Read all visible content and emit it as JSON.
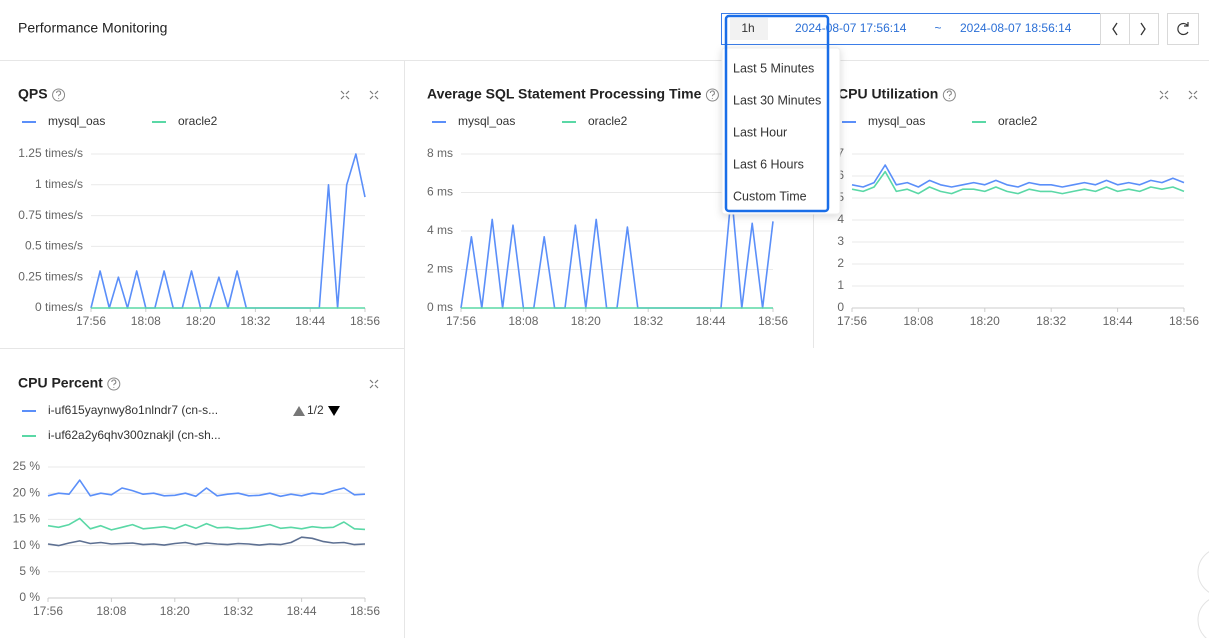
{
  "header": {
    "title": "Performance Monitoring",
    "range": "1h",
    "start": "2024-08-07 17:56:14",
    "separator": "~",
    "end": "2024-08-07 18:56:14"
  },
  "dropdown": {
    "options": [
      "Last 5 Minutes",
      "Last 30 Minutes",
      "Last Hour",
      "Last 6 Hours",
      "Custom Time"
    ]
  },
  "chart_data": [
    {
      "type": "line",
      "title": "QPS",
      "categories": [
        "17:56",
        null,
        null,
        null,
        null,
        null,
        "18:08",
        null,
        null,
        null,
        null,
        null,
        "18:20",
        null,
        null,
        null,
        null,
        null,
        "18:32",
        null,
        null,
        null,
        null,
        null,
        "18:44",
        null,
        null,
        null,
        null,
        null,
        "18:56"
      ],
      "series": [
        {
          "name": "mysql_oas",
          "color": "#5b8ff9",
          "values": [
            0,
            0.3,
            0,
            0.25,
            0,
            0.3,
            0,
            0,
            0.3,
            0,
            0,
            0.3,
            0,
            0,
            0.25,
            0,
            0.3,
            0,
            0,
            0,
            0,
            0,
            0,
            0,
            0,
            0,
            1.0,
            0,
            1.0,
            1.25,
            0.9
          ]
        },
        {
          "name": "oracle2",
          "color": "#5ad8a6",
          "values": [
            0,
            0,
            0,
            0,
            0,
            0,
            0,
            0,
            0,
            0,
            0,
            0,
            0,
            0,
            0,
            0,
            0,
            0,
            0,
            0,
            0,
            0,
            0,
            0,
            0,
            0,
            0,
            0,
            0,
            0,
            0
          ]
        }
      ],
      "ylim": [
        0,
        1.25
      ],
      "yticks": [
        {
          "value": 0,
          "label": "0 times/s"
        },
        {
          "value": 0.25,
          "label": "0.25 times/s"
        },
        {
          "value": 0.5,
          "label": "0.5 times/s"
        },
        {
          "value": 0.75,
          "label": "0.75 times/s"
        },
        {
          "value": 1,
          "label": "1 times/s"
        },
        {
          "value": 1.25,
          "label": "1.25 times/s"
        }
      ],
      "grid": true
    },
    {
      "type": "line",
      "title": "Average SQL Statement Processing Time",
      "categories": [
        "17:56",
        null,
        null,
        null,
        null,
        null,
        "18:08",
        null,
        null,
        null,
        null,
        null,
        "18:20",
        null,
        null,
        null,
        null,
        null,
        "18:32",
        null,
        null,
        null,
        null,
        null,
        "18:44",
        null,
        null,
        null,
        null,
        null,
        "18:56"
      ],
      "series": [
        {
          "name": "mysql_oas",
          "color": "#5b8ff9",
          "values": [
            0,
            3.7,
            0,
            4.6,
            0,
            4.3,
            0,
            0,
            3.7,
            0,
            0,
            4.3,
            0,
            4.6,
            0,
            0,
            4.2,
            0,
            0,
            0,
            0,
            0,
            0,
            0,
            0,
            0,
            6,
            0,
            4.4,
            0,
            4.5
          ]
        },
        {
          "name": "oracle2",
          "color": "#5ad8a6",
          "values": [
            0,
            0,
            0,
            0,
            0,
            0,
            0,
            0,
            0,
            0,
            0,
            0,
            0,
            0,
            0,
            0,
            0,
            0,
            0,
            0,
            0,
            0,
            0,
            0,
            0,
            0,
            0,
            0,
            0,
            0,
            0
          ]
        }
      ],
      "ylim": [
        0,
        8
      ],
      "yticks": [
        {
          "value": 0,
          "label": "0 ms"
        },
        {
          "value": 2,
          "label": "2 ms"
        },
        {
          "value": 4,
          "label": "4 ms"
        },
        {
          "value": 6,
          "label": "6 ms"
        },
        {
          "value": 8,
          "label": "8 ms"
        }
      ],
      "grid": true
    },
    {
      "type": "line",
      "title": "CPU Utilization",
      "categories": [
        "17:56",
        null,
        null,
        null,
        null,
        null,
        "18:08",
        null,
        null,
        null,
        null,
        null,
        "18:20",
        null,
        null,
        null,
        null,
        null,
        "18:32",
        null,
        null,
        null,
        null,
        null,
        "18:44",
        null,
        null,
        null,
        null,
        null,
        "18:56"
      ],
      "series": [
        {
          "name": "mysql_oas",
          "color": "#5b8ff9",
          "values": [
            5.6,
            5.5,
            5.7,
            6.5,
            5.6,
            5.7,
            5.5,
            5.8,
            5.6,
            5.5,
            5.6,
            5.7,
            5.6,
            5.8,
            5.6,
            5.5,
            5.7,
            5.6,
            5.6,
            5.5,
            5.6,
            5.7,
            5.6,
            5.8,
            5.6,
            5.7,
            5.6,
            5.8,
            5.7,
            5.9,
            5.7
          ]
        },
        {
          "name": "oracle2",
          "color": "#5ad8a6",
          "values": [
            5.4,
            5.3,
            5.5,
            6.2,
            5.3,
            5.4,
            5.2,
            5.5,
            5.3,
            5.2,
            5.4,
            5.4,
            5.3,
            5.5,
            5.3,
            5.2,
            5.4,
            5.3,
            5.3,
            5.2,
            5.3,
            5.4,
            5.3,
            5.5,
            5.3,
            5.4,
            5.3,
            5.5,
            5.4,
            5.5,
            5.3
          ]
        }
      ],
      "ylim": [
        0,
        7
      ],
      "yticks": [
        0,
        1,
        2,
        3,
        4,
        5,
        6,
        7
      ],
      "grid": true
    },
    {
      "type": "line",
      "title": "CPU Percent",
      "legend_page": "1/2",
      "categories": [
        "17:56",
        null,
        null,
        null,
        null,
        null,
        "18:08",
        null,
        null,
        null,
        null,
        null,
        "18:20",
        null,
        null,
        null,
        null,
        null,
        "18:32",
        null,
        null,
        null,
        null,
        null,
        "18:44",
        null,
        null,
        null,
        null,
        null,
        "18:56"
      ],
      "series": [
        {
          "name": "i-uf615yaynwy8o1nlndr7 (cn-s...",
          "color": "#5b8ff9",
          "values": [
            19.5,
            20,
            19.8,
            22.5,
            19.5,
            20,
            19.7,
            21,
            20.5,
            19.8,
            20,
            19.5,
            19.6,
            20,
            19.4,
            21,
            19.5,
            19.8,
            20,
            19.5,
            19.6,
            20,
            19.4,
            19.8,
            19.5,
            20,
            19.8,
            20.5,
            21,
            19.7,
            19.8
          ]
        },
        {
          "name": "i-uf62a2y6qhv300znakjl (cn-sh...",
          "color": "#5ad8a6",
          "values": [
            13.8,
            13.5,
            14,
            15.2,
            13.2,
            13.8,
            13,
            13.5,
            14,
            13.2,
            13.4,
            13.6,
            13.2,
            14,
            13.3,
            14.2,
            13.4,
            13.5,
            13.2,
            13.3,
            13.6,
            14,
            13.3,
            13.5,
            13.2,
            13.6,
            13.4,
            13.5,
            14.5,
            13.2,
            13.1
          ]
        },
        {
          "color": "#5d7092",
          "values": [
            10.3,
            10,
            10.5,
            10.9,
            10.4,
            10.6,
            10.3,
            10.4,
            10.5,
            10.2,
            10.3,
            10.1,
            10.4,
            10.6,
            10.2,
            10.5,
            10.3,
            10.2,
            10.4,
            10.3,
            10.1,
            10.3,
            10.2,
            10.6,
            11.6,
            11.4,
            10.8,
            10.5,
            10.6,
            10.2,
            10.3
          ]
        }
      ],
      "ylim": [
        0,
        25
      ],
      "yticks": [
        {
          "value": 0,
          "label": "0 %"
        },
        {
          "value": 5,
          "label": "5 %"
        },
        {
          "value": 10,
          "label": "10 %"
        },
        {
          "value": 15,
          "label": "15 %"
        },
        {
          "value": 20,
          "label": "20 %"
        },
        {
          "value": 25,
          "label": "25 %"
        }
      ],
      "grid": true
    }
  ]
}
